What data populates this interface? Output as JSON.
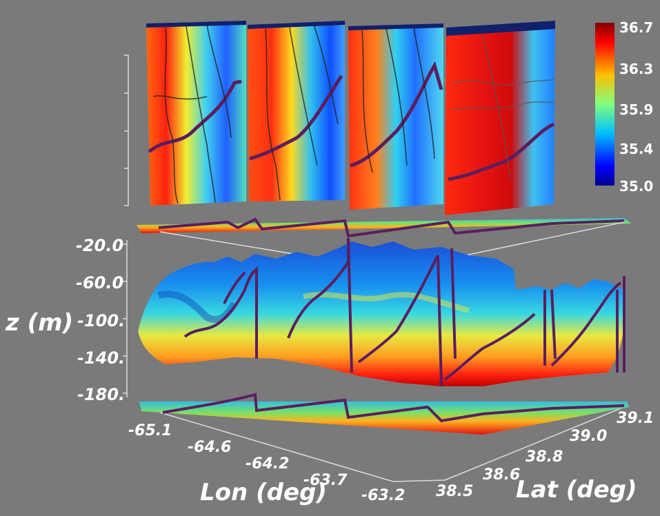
{
  "chart_data": {
    "type": "heatmap",
    "axes": {
      "z": {
        "label": "z (m)",
        "ticks": [
          "-20.0",
          "-60.0",
          "-100.",
          "-140.",
          "-180."
        ]
      },
      "lon": {
        "label": "Lon (deg)",
        "ticks": [
          "-65.1",
          "-64.6",
          "-64.2",
          "-63.7",
          "-63.2"
        ]
      },
      "lat": {
        "label": "Lat (deg)",
        "ticks": [
          "38.5",
          "38.6",
          "38.8",
          "39.0",
          "39.1"
        ]
      }
    },
    "colorbar": {
      "ticks": [
        "36.7",
        "36.3",
        "35.9",
        "35.4",
        "35.0"
      ],
      "range": [
        35.0,
        36.7
      ],
      "colormap": "jet"
    },
    "vertical_sections": 4,
    "track_color": "#5a1f5e"
  }
}
